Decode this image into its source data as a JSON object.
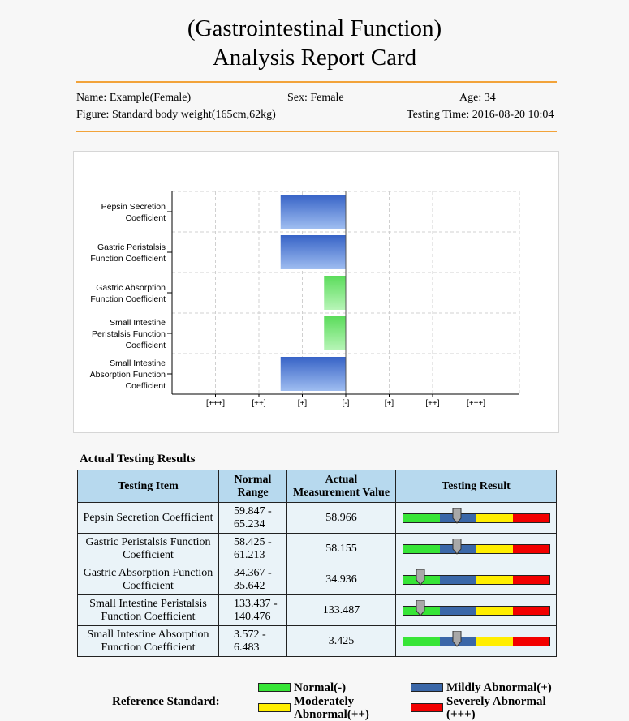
{
  "header": {
    "title_line1": "(Gastrointestinal Function)",
    "title_line2": "Analysis Report Card"
  },
  "patient": {
    "name": "Name: Example(Female)",
    "sex": "Sex: Female",
    "age": "Age: 34",
    "figure": "Figure: Standard body weight(165cm,62kg)",
    "testing_time": "Testing Time: 2016-08-20 10:04"
  },
  "chart_data": {
    "type": "bar",
    "orientation": "horizontal",
    "categories": [
      [
        "Pepsin Secretion",
        "Coefficient"
      ],
      [
        "Gastric Peristalsis",
        "Function Coefficient"
      ],
      [
        "Gastric Absorption",
        "Function Coefficient"
      ],
      [
        "Small Intestine",
        "Peristalsis Function",
        "Coefficient"
      ],
      [
        "Small Intestine",
        "Absorption Function",
        "Coefficient"
      ]
    ],
    "x_ticks": [
      "[+++]",
      "[++]",
      "[+]",
      "[-]",
      "[+]",
      "[++]",
      "[+++]"
    ],
    "xlim": [
      -4,
      4
    ],
    "values": [
      -1.5,
      -1.5,
      -0.5,
      -0.5,
      -1.5
    ],
    "colors": [
      "#3a67c8",
      "#3a67c8",
      "#66dd66",
      "#66dd66",
      "#3a67c8"
    ],
    "grid": true
  },
  "results": {
    "section_title": "Actual Testing Results",
    "columns": [
      "Testing Item",
      "Normal Range",
      "Actual Measurement Value",
      "Testing Result"
    ],
    "rows": [
      {
        "item": "Pepsin Secretion Coefficient",
        "range": "59.847 - 65.234",
        "value": "58.966",
        "level": 0.37
      },
      {
        "item": "Gastric Peristalsis Function Coefficient",
        "range": "58.425 - 61.213",
        "value": "58.155",
        "level": 0.37
      },
      {
        "item": "Gastric Absorption Function Coefficient",
        "range": "34.367 - 35.642",
        "value": "34.936",
        "level": 0.12
      },
      {
        "item": "Small Intestine Peristalsis Function Coefficient",
        "range": "133.437 - 140.476",
        "value": "133.487",
        "level": 0.12
      },
      {
        "item": "Small Intestine Absorption Function Coefficient",
        "range": "3.572 - 6.483",
        "value": "3.425",
        "level": 0.37
      }
    ]
  },
  "reference": {
    "label": "Reference Standard:",
    "items": [
      {
        "label": "Normal(-)",
        "color": "#37e537"
      },
      {
        "label": "Mildly Abnormal(+)",
        "color": "#3a67a8"
      },
      {
        "label": "Moderately Abnormal(++)",
        "color": "#ffee00"
      },
      {
        "label": "Severely Abnormal (+++)",
        "color": "#f20000"
      }
    ]
  }
}
